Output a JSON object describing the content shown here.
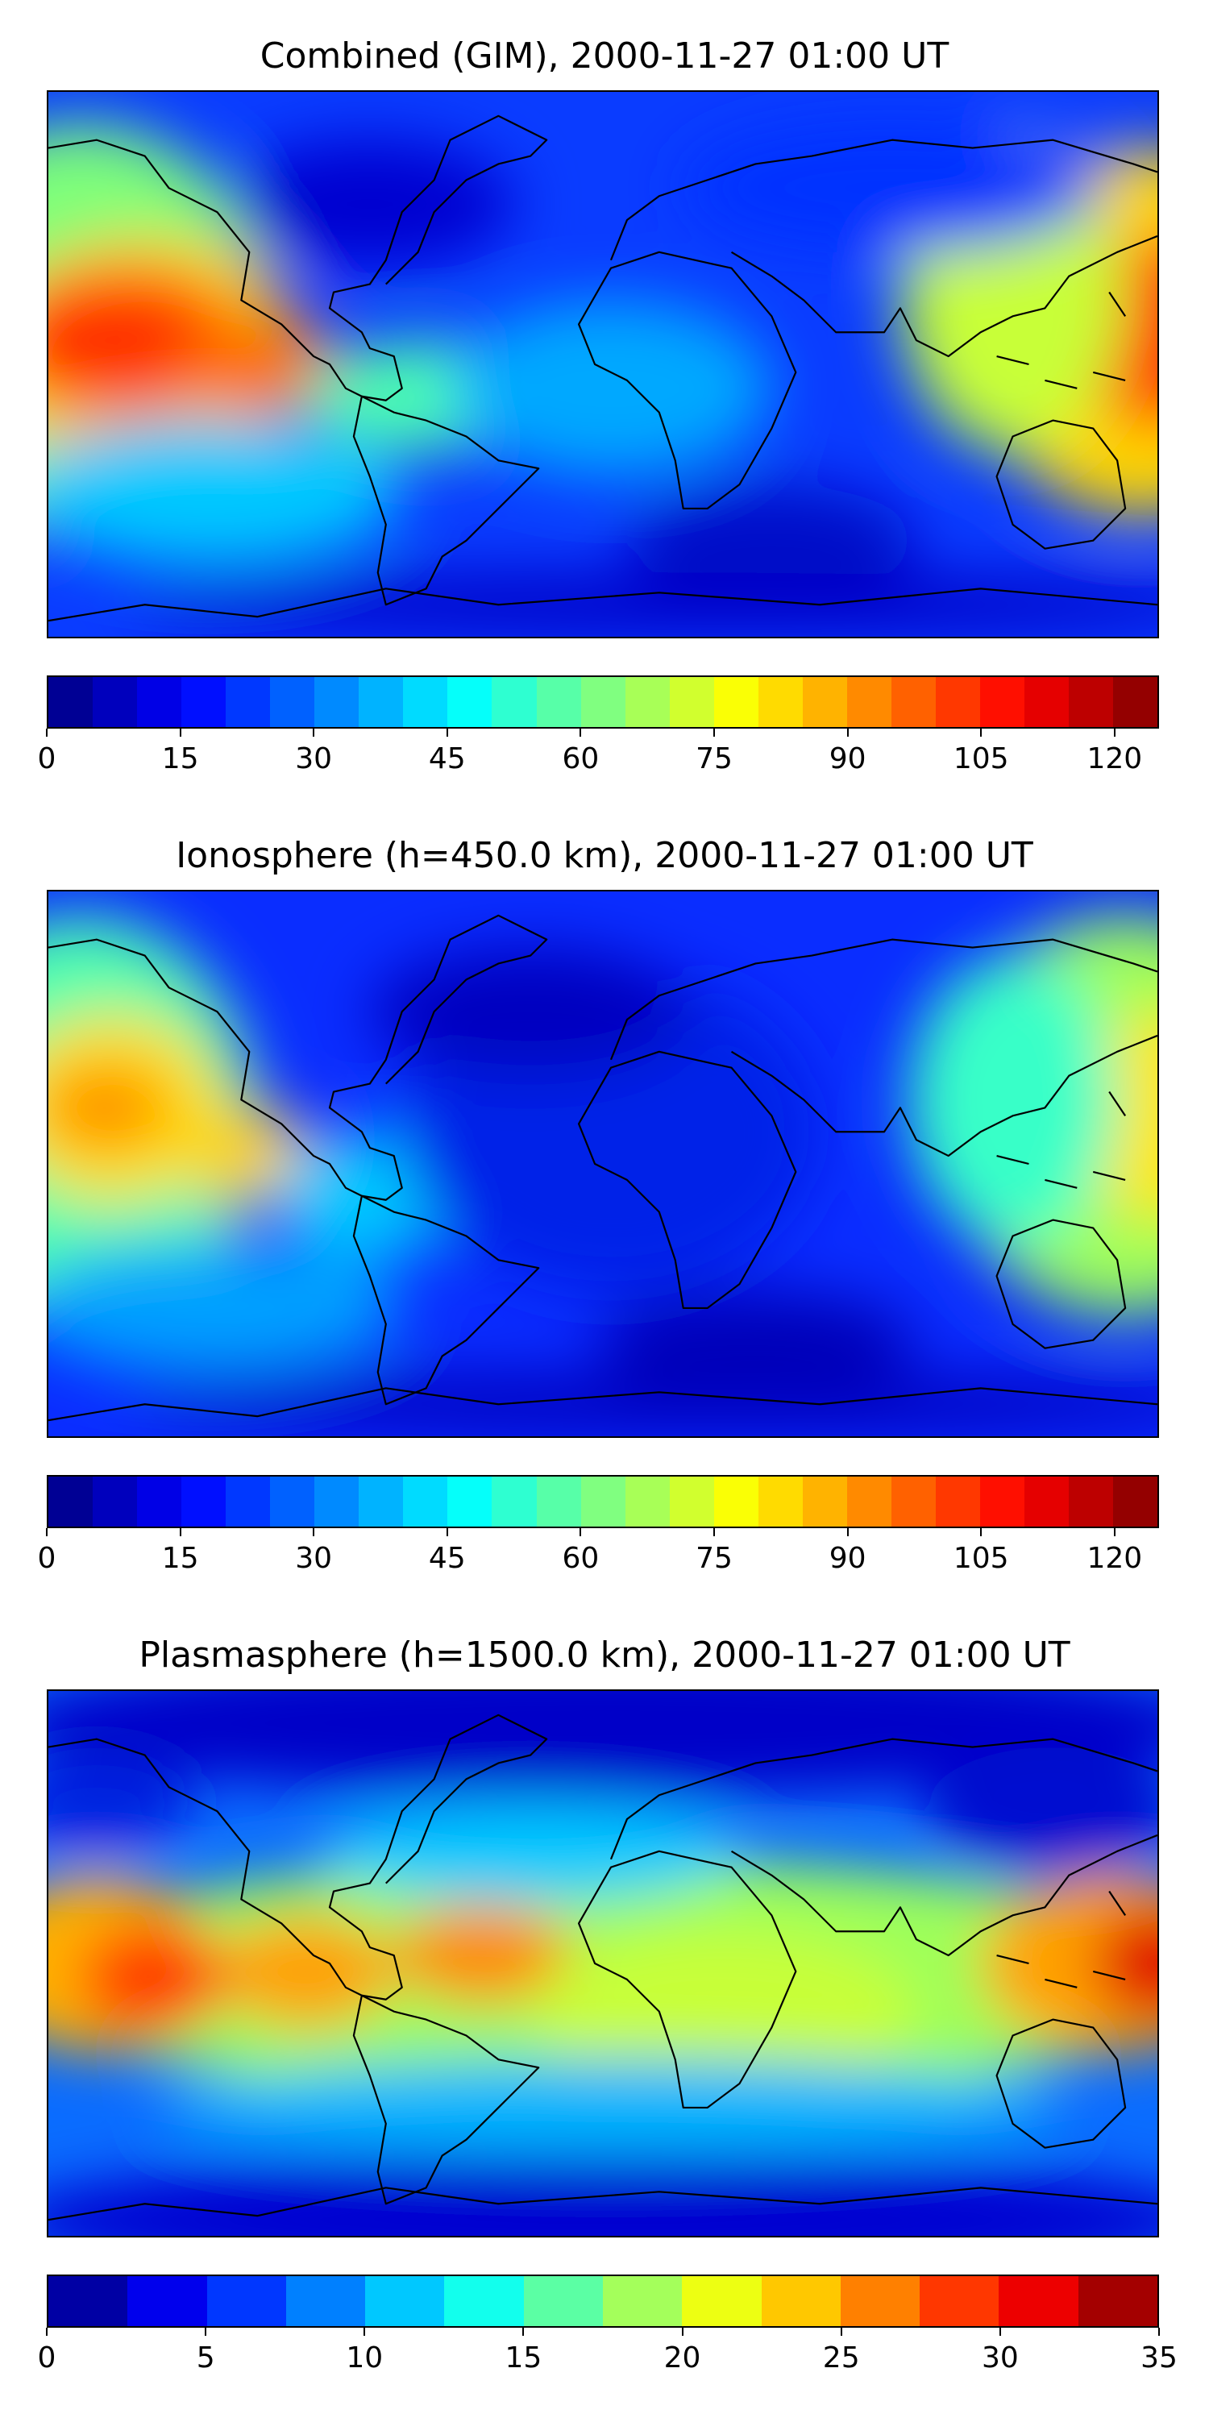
{
  "panels": [
    {
      "title": "Combined (GIM), 2000-11-27 01:00 UT",
      "colorbar": {
        "min": 0,
        "max": 125,
        "levels": 25,
        "ticks": [
          "0",
          "15",
          "30",
          "45",
          "60",
          "75",
          "90",
          "105",
          "120"
        ],
        "tick_values": [
          0,
          15,
          30,
          45,
          60,
          75,
          90,
          105,
          120
        ]
      },
      "features": [
        {
          "name": "max-central-pacific",
          "level": 0.92
        },
        {
          "name": "max-west-pacific",
          "level": 0.82
        },
        {
          "name": "high-south-america",
          "level": 0.55
        },
        {
          "name": "low-north-atlantic",
          "level": 0.12
        },
        {
          "name": "low-south-atlantic",
          "level": 0.15
        }
      ]
    },
    {
      "title": "Ionosphere  (h=450.0 km), 2000-11-27 01:00 UT",
      "colorbar": {
        "min": 0,
        "max": 125,
        "levels": 25,
        "ticks": [
          "0",
          "15",
          "30",
          "45",
          "60",
          "75",
          "90",
          "105",
          "120"
        ],
        "tick_values": [
          0,
          15,
          30,
          45,
          60,
          75,
          90,
          105,
          120
        ]
      },
      "features": [
        {
          "name": "max-central-pacific",
          "level": 0.72
        },
        {
          "name": "max-west-pacific",
          "level": 0.68
        },
        {
          "name": "low-atlantic-africa",
          "level": 0.12
        },
        {
          "name": "low-south-atlantic",
          "level": 0.1
        }
      ]
    },
    {
      "title": "Plasmasphere (h=1500.0 km), 2000-11-27 01:00 UT",
      "colorbar": {
        "min": 0,
        "max": 35,
        "levels": 14,
        "ticks": [
          "0",
          "5",
          "10",
          "15",
          "20",
          "25",
          "30",
          "35"
        ],
        "tick_values": [
          0,
          5,
          10,
          15,
          20,
          25,
          30,
          35
        ]
      },
      "features": [
        {
          "name": "max-central-pacific",
          "level": 0.85
        },
        {
          "name": "max-south-america",
          "level": 0.8
        },
        {
          "name": "max-west-pacific",
          "level": 0.9
        },
        {
          "name": "low-north-polar",
          "level": 0.05
        },
        {
          "name": "low-south-polar",
          "level": 0.05
        }
      ]
    }
  ],
  "colormap": "jet",
  "coastlines": "black"
}
